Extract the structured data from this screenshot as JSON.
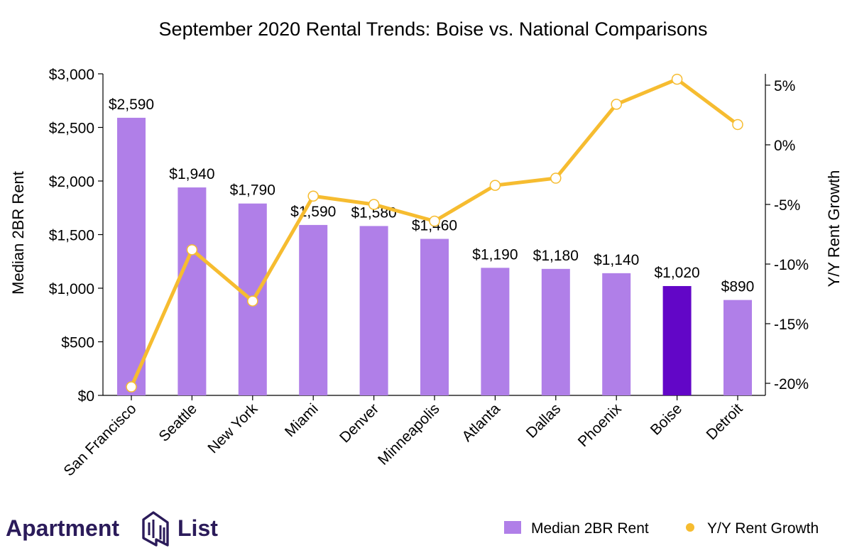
{
  "branding": {
    "logo_left": "Apartment",
    "logo_right": "List"
  },
  "colors": {
    "bar": "#b07fe8",
    "bar_highlight": "#6206c7",
    "line": "#f6bc30",
    "marker_fill": "#ffffff",
    "logo": "#2b1b5a"
  },
  "chart_data": {
    "type": "bar",
    "title": "September 2020 Rental Trends: Boise vs. National Comparisons",
    "categories": [
      "San Francisco",
      "Seattle",
      "New York",
      "Miami",
      "Denver",
      "Minneapolis",
      "Atlanta",
      "Dallas",
      "Phoenix",
      "Boise",
      "Detroit"
    ],
    "highlight_category": "Boise",
    "series": [
      {
        "name": "Median 2BR Rent",
        "type": "bar",
        "axis": "left",
        "values": [
          2590,
          1940,
          1790,
          1590,
          1580,
          1460,
          1190,
          1180,
          1140,
          1020,
          890
        ],
        "labels": [
          "$2,590",
          "$1,940",
          "$1,790",
          "$1,590",
          "$1,580",
          "$1,460",
          "$1,190",
          "$1,180",
          "$1,140",
          "$1,020",
          "$890"
        ]
      },
      {
        "name": "Y/Y Rent Growth",
        "type": "line",
        "axis": "right",
        "values": [
          -20.3,
          -8.8,
          -13.1,
          -4.3,
          -5.0,
          -6.4,
          -3.4,
          -2.8,
          3.4,
          5.5,
          1.7
        ]
      }
    ],
    "ylabel": "Median 2BR Rent",
    "y2label": "Y/Y Rent Growth",
    "ylim": [
      0,
      3000
    ],
    "yticks": [
      0,
      500,
      1000,
      1500,
      2000,
      2500,
      3000
    ],
    "ytick_labels": [
      "$0",
      "$500",
      "$1,000",
      "$1,500",
      "$2,000",
      "$2,500",
      "$3,000"
    ],
    "y2lim": [
      -21,
      6
    ],
    "y2ticks": [
      -20,
      -15,
      -10,
      -5,
      0,
      5
    ],
    "y2tick_labels": [
      "-20%",
      "-15%",
      "-10%",
      "-5%",
      "0%",
      "5%"
    ],
    "grid": false,
    "legend_position": "bottom-right"
  }
}
